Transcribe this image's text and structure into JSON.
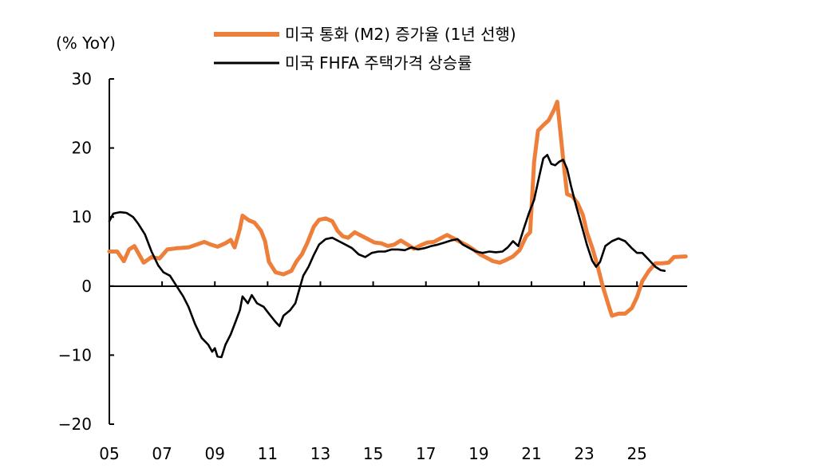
{
  "chart_data": {
    "type": "line",
    "unit_label": "(% YoY)",
    "x_ticks": [
      "05",
      "07",
      "09",
      "11",
      "13",
      "15",
      "17",
      "19",
      "21",
      "23",
      "25"
    ],
    "y_ticks": [
      "30",
      "20",
      "10",
      "0",
      "−10",
      "−20"
    ],
    "xlim": [
      2005,
      2026.9
    ],
    "ylim": [
      -20,
      30
    ],
    "legend_position": "top-center",
    "series": [
      {
        "name": "미국 통화 (M2) 증가율 (1년 선행)",
        "color": "#ee7f3a",
        "points": [
          [
            2005.0,
            5.0
          ],
          [
            2005.3,
            5.0
          ],
          [
            2005.55,
            3.6
          ],
          [
            2005.75,
            5.3
          ],
          [
            2005.95,
            5.8
          ],
          [
            2006.3,
            3.4
          ],
          [
            2006.6,
            4.2
          ],
          [
            2006.9,
            4.0
          ],
          [
            2007.2,
            5.3
          ],
          [
            2007.6,
            5.5
          ],
          [
            2008.0,
            5.6
          ],
          [
            2008.3,
            6.0
          ],
          [
            2008.6,
            6.4
          ],
          [
            2008.85,
            6.0
          ],
          [
            2009.1,
            5.7
          ],
          [
            2009.4,
            6.2
          ],
          [
            2009.6,
            6.7
          ],
          [
            2009.75,
            5.6
          ],
          [
            2009.95,
            8.3
          ],
          [
            2010.05,
            10.2
          ],
          [
            2010.3,
            9.5
          ],
          [
            2010.5,
            9.2
          ],
          [
            2010.75,
            8.0
          ],
          [
            2010.9,
            6.5
          ],
          [
            2011.05,
            3.5
          ],
          [
            2011.3,
            2.0
          ],
          [
            2011.6,
            1.7
          ],
          [
            2011.9,
            2.2
          ],
          [
            2012.1,
            3.6
          ],
          [
            2012.3,
            4.6
          ],
          [
            2012.5,
            6.2
          ],
          [
            2012.75,
            8.6
          ],
          [
            2012.95,
            9.6
          ],
          [
            2013.2,
            9.8
          ],
          [
            2013.45,
            9.4
          ],
          [
            2013.65,
            8.0
          ],
          [
            2013.85,
            7.2
          ],
          [
            2014.05,
            7.0
          ],
          [
            2014.3,
            7.8
          ],
          [
            2014.55,
            7.3
          ],
          [
            2014.8,
            6.8
          ],
          [
            2015.05,
            6.3
          ],
          [
            2015.3,
            6.2
          ],
          [
            2015.55,
            5.8
          ],
          [
            2015.8,
            6.0
          ],
          [
            2016.05,
            6.6
          ],
          [
            2016.3,
            6.0
          ],
          [
            2016.55,
            5.4
          ],
          [
            2016.8,
            5.9
          ],
          [
            2017.05,
            6.3
          ],
          [
            2017.3,
            6.4
          ],
          [
            2017.55,
            6.9
          ],
          [
            2017.8,
            7.4
          ],
          [
            2018.05,
            6.9
          ],
          [
            2018.3,
            6.4
          ],
          [
            2018.55,
            5.9
          ],
          [
            2018.8,
            5.3
          ],
          [
            2019.05,
            4.6
          ],
          [
            2019.3,
            4.1
          ],
          [
            2019.55,
            3.6
          ],
          [
            2019.8,
            3.4
          ],
          [
            2020.05,
            3.8
          ],
          [
            2020.3,
            4.3
          ],
          [
            2020.55,
            5.2
          ],
          [
            2020.8,
            7.2
          ],
          [
            2020.95,
            7.8
          ],
          [
            2021.1,
            18.0
          ],
          [
            2021.25,
            22.5
          ],
          [
            2021.45,
            23.3
          ],
          [
            2021.65,
            24.0
          ],
          [
            2021.85,
            25.5
          ],
          [
            2021.98,
            26.7
          ],
          [
            2022.05,
            24.0
          ],
          [
            2022.2,
            18.5
          ],
          [
            2022.35,
            13.3
          ],
          [
            2022.55,
            13.0
          ],
          [
            2022.75,
            12.0
          ],
          [
            2022.95,
            10.3
          ],
          [
            2023.1,
            7.8
          ],
          [
            2023.3,
            5.6
          ],
          [
            2023.5,
            3.0
          ],
          [
            2023.7,
            0.0
          ],
          [
            2023.9,
            -2.5
          ],
          [
            2024.05,
            -4.3
          ],
          [
            2024.3,
            -4.0
          ],
          [
            2024.55,
            -4.0
          ],
          [
            2024.8,
            -3.2
          ],
          [
            2025.0,
            -1.6
          ],
          [
            2025.2,
            0.7
          ],
          [
            2025.45,
            2.2
          ],
          [
            2025.7,
            3.3
          ],
          [
            2025.95,
            3.3
          ],
          [
            2026.2,
            3.4
          ],
          [
            2026.4,
            4.2
          ],
          [
            2026.85,
            4.3
          ]
        ]
      },
      {
        "name": "미국 FHFA  주택가격 상승률",
        "color": "#000000",
        "points": [
          [
            2005.0,
            9.4
          ],
          [
            2005.15,
            10.5
          ],
          [
            2005.4,
            10.7
          ],
          [
            2005.65,
            10.6
          ],
          [
            2005.9,
            10.0
          ],
          [
            2006.1,
            9.0
          ],
          [
            2006.35,
            7.5
          ],
          [
            2006.6,
            5.0
          ],
          [
            2006.85,
            3.0
          ],
          [
            2007.05,
            2.0
          ],
          [
            2007.3,
            1.5
          ],
          [
            2007.55,
            0.0
          ],
          [
            2007.8,
            -1.5
          ],
          [
            2008.0,
            -3.0
          ],
          [
            2008.25,
            -5.5
          ],
          [
            2008.5,
            -7.5
          ],
          [
            2008.75,
            -8.5
          ],
          [
            2008.9,
            -9.5
          ],
          [
            2009.0,
            -9.0
          ],
          [
            2009.1,
            -10.2
          ],
          [
            2009.25,
            -10.3
          ],
          [
            2009.4,
            -8.5
          ],
          [
            2009.6,
            -7.0
          ],
          [
            2009.8,
            -5.0
          ],
          [
            2009.95,
            -3.5
          ],
          [
            2010.05,
            -1.5
          ],
          [
            2010.25,
            -2.5
          ],
          [
            2010.4,
            -1.3
          ],
          [
            2010.6,
            -2.5
          ],
          [
            2010.85,
            -3.0
          ],
          [
            2011.05,
            -4.0
          ],
          [
            2011.3,
            -5.2
          ],
          [
            2011.45,
            -5.8
          ],
          [
            2011.6,
            -4.3
          ],
          [
            2011.85,
            -3.5
          ],
          [
            2012.05,
            -2.5
          ],
          [
            2012.2,
            -0.5
          ],
          [
            2012.35,
            1.5
          ],
          [
            2012.55,
            2.8
          ],
          [
            2012.75,
            4.5
          ],
          [
            2012.95,
            6.0
          ],
          [
            2013.2,
            6.8
          ],
          [
            2013.45,
            7.0
          ],
          [
            2013.7,
            6.5
          ],
          [
            2013.95,
            6.0
          ],
          [
            2014.2,
            5.5
          ],
          [
            2014.45,
            4.6
          ],
          [
            2014.7,
            4.2
          ],
          [
            2014.95,
            4.8
          ],
          [
            2015.2,
            5.0
          ],
          [
            2015.45,
            5.0
          ],
          [
            2015.7,
            5.3
          ],
          [
            2015.95,
            5.3
          ],
          [
            2016.2,
            5.2
          ],
          [
            2016.45,
            5.6
          ],
          [
            2016.7,
            5.3
          ],
          [
            2016.95,
            5.5
          ],
          [
            2017.2,
            5.8
          ],
          [
            2017.45,
            6.0
          ],
          [
            2017.7,
            6.3
          ],
          [
            2017.95,
            6.6
          ],
          [
            2018.2,
            6.8
          ],
          [
            2018.4,
            6.0
          ],
          [
            2018.65,
            5.5
          ],
          [
            2018.9,
            5.0
          ],
          [
            2019.15,
            4.8
          ],
          [
            2019.4,
            5.0
          ],
          [
            2019.65,
            4.9
          ],
          [
            2019.9,
            5.0
          ],
          [
            2020.1,
            5.6
          ],
          [
            2020.3,
            6.5
          ],
          [
            2020.5,
            5.8
          ],
          [
            2020.7,
            8.2
          ],
          [
            2020.9,
            10.5
          ],
          [
            2021.1,
            12.5
          ],
          [
            2021.3,
            16.0
          ],
          [
            2021.45,
            18.5
          ],
          [
            2021.6,
            19.0
          ],
          [
            2021.75,
            17.7
          ],
          [
            2021.9,
            17.5
          ],
          [
            2022.05,
            18.0
          ],
          [
            2022.2,
            18.3
          ],
          [
            2022.35,
            17.0
          ],
          [
            2022.5,
            14.5
          ],
          [
            2022.7,
            11.5
          ],
          [
            2022.9,
            8.8
          ],
          [
            2023.1,
            6.0
          ],
          [
            2023.3,
            3.7
          ],
          [
            2023.45,
            2.8
          ],
          [
            2023.6,
            3.5
          ],
          [
            2023.8,
            5.8
          ],
          [
            2024.05,
            6.5
          ],
          [
            2024.3,
            6.9
          ],
          [
            2024.55,
            6.5
          ],
          [
            2024.8,
            5.5
          ],
          [
            2025.0,
            4.8
          ],
          [
            2025.2,
            4.8
          ],
          [
            2025.45,
            3.8
          ],
          [
            2025.7,
            2.8
          ],
          [
            2025.9,
            2.3
          ],
          [
            2026.05,
            2.2
          ]
        ]
      }
    ]
  }
}
